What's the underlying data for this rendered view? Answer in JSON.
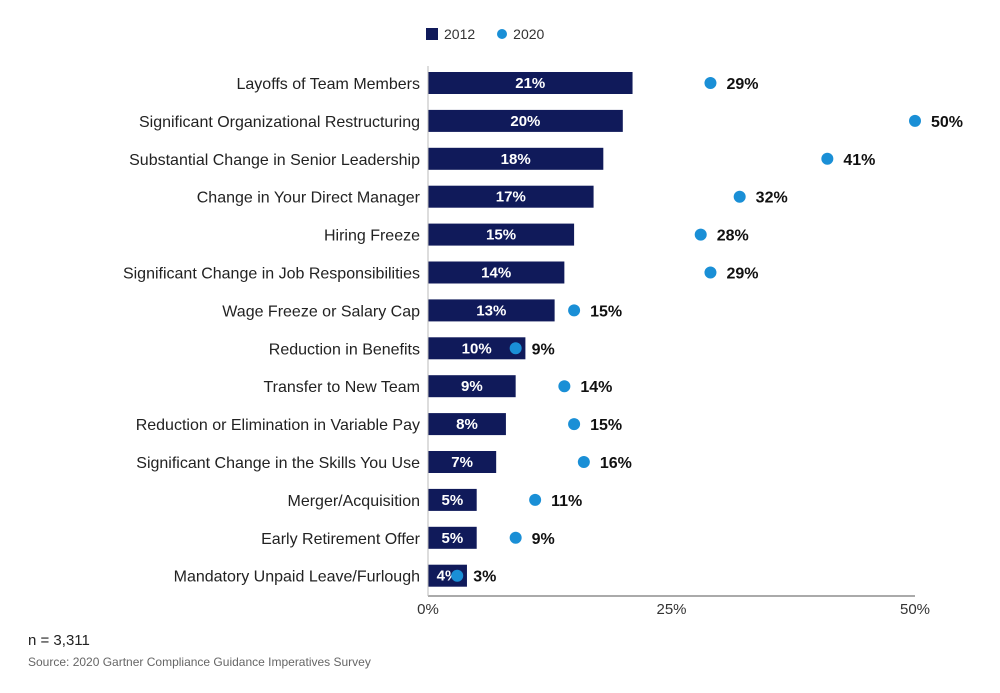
{
  "legend": [
    {
      "label": "2012",
      "color": "#101a5a",
      "shape": "square"
    },
    {
      "label": "2020",
      "color": "#1a8fd6",
      "shape": "dot"
    }
  ],
  "footer": {
    "n": "n = 3,311",
    "source": "Source: 2020 Gartner Compliance Guidance Imperatives Survey"
  },
  "chart_data": {
    "type": "bar",
    "orientation": "horizontal",
    "xlim": [
      0,
      50
    ],
    "ticks": [
      "0%",
      "25%",
      "50%"
    ],
    "tick_values": [
      0,
      25,
      50
    ],
    "grid": false,
    "legend_position": "top",
    "categories": [
      "Layoffs of Team Members",
      "Significant Organizational Restructuring",
      "Substantial Change in Senior Leadership",
      "Change in Your Direct Manager",
      "Hiring Freeze",
      "Significant Change in Job Responsibilities",
      "Wage Freeze or Salary Cap",
      "Reduction in Benefits",
      "Transfer to New Team",
      "Reduction or Elimination in Variable Pay",
      "Significant Change in the Skills You Use",
      "Merger/Acquisition",
      "Early Retirement Offer",
      "Mandatory Unpaid Leave/Furlough"
    ],
    "series": [
      {
        "name": "2012",
        "mark": "bar",
        "color": "#101a5a",
        "values": [
          21,
          20,
          18,
          17,
          15,
          14,
          13,
          10,
          9,
          8,
          7,
          5,
          5,
          4
        ],
        "labels": [
          "21%",
          "20%",
          "18%",
          "17%",
          "15%",
          "14%",
          "13%",
          "10%",
          "9%",
          "8%",
          "7%",
          "5%",
          "5%",
          "4%"
        ]
      },
      {
        "name": "2020",
        "mark": "dot",
        "color": "#1a8fd6",
        "values": [
          29,
          50,
          41,
          32,
          28,
          29,
          15,
          9,
          14,
          15,
          16,
          11,
          9,
          3
        ],
        "labels": [
          "29%",
          "50%",
          "41%",
          "32%",
          "28%",
          "29%",
          "15%",
          "9%",
          "14%",
          "15%",
          "16%",
          "11%",
          "9%",
          "3%"
        ]
      }
    ]
  }
}
